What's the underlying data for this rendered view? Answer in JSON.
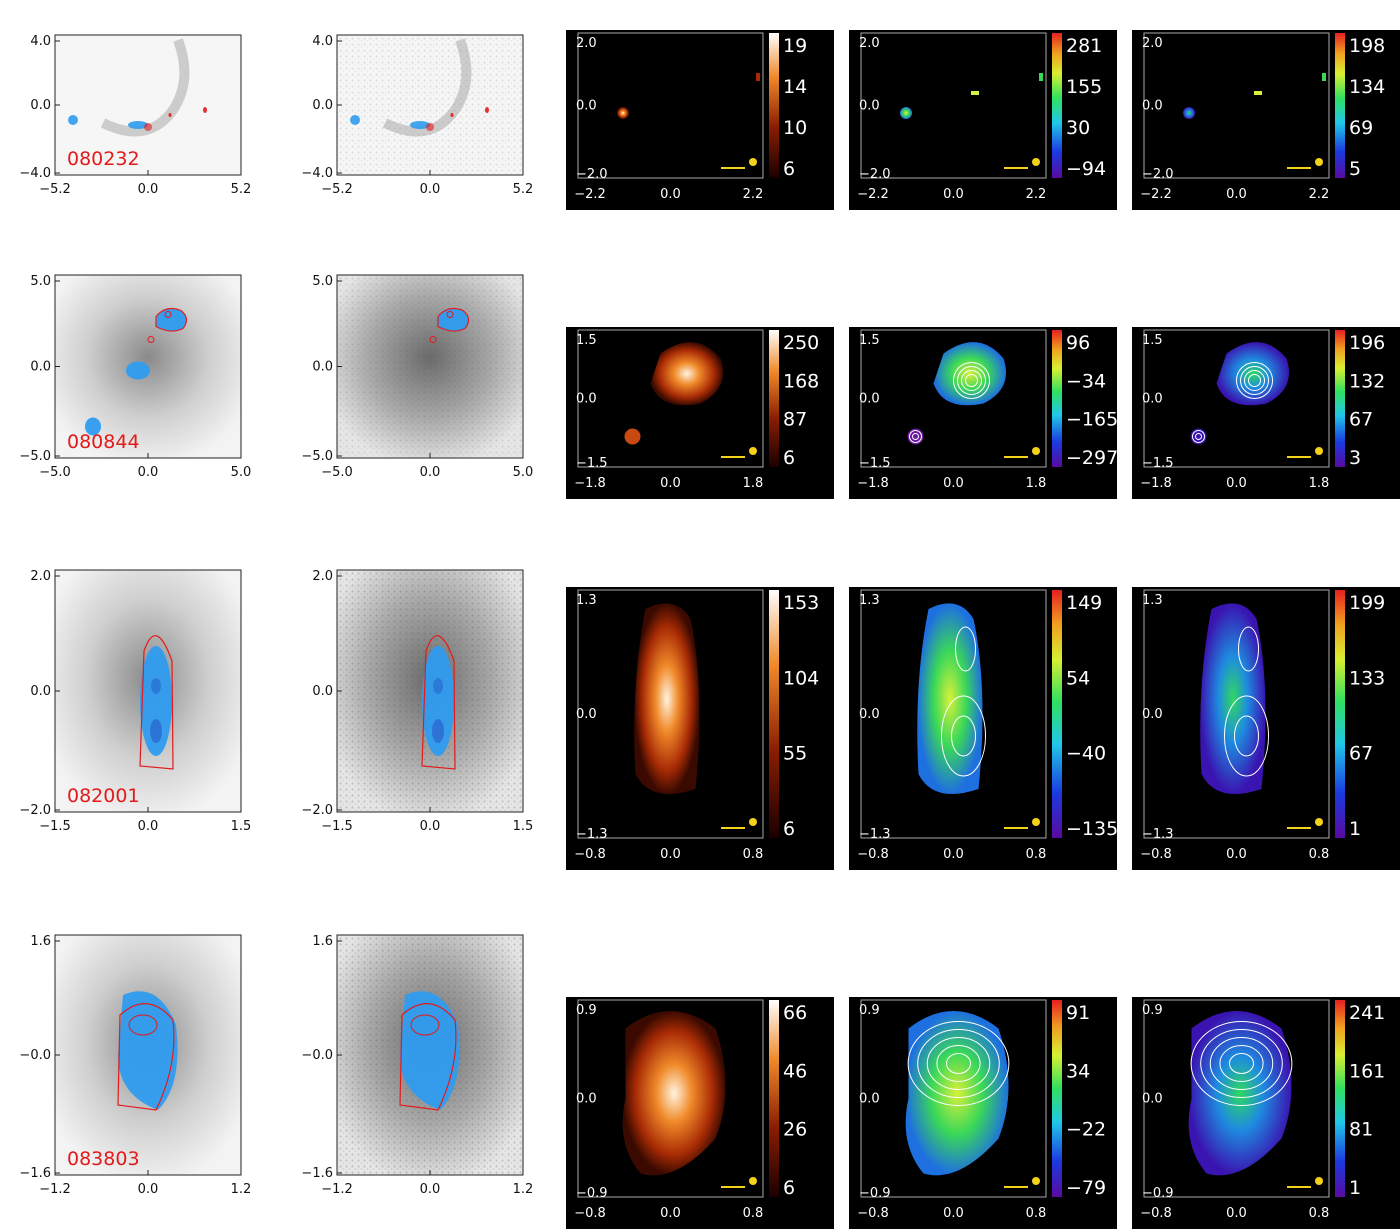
{
  "figure": {
    "rows": [
      {
        "id": "080232",
        "hst": {
          "x_ticks": [
            "−5.2",
            "0.0",
            "5.2"
          ],
          "y_ticks": [
            "4.0",
            "0.0",
            "−4.0"
          ]
        },
        "maps_axes": {
          "x_ticks": [
            "−2.2",
            "0.0",
            "2.2"
          ],
          "y_ticks": [
            "2.0",
            "0.0",
            "−2.0"
          ]
        },
        "flux_colorbar": [
          "19",
          "14",
          "10",
          "6"
        ],
        "velocity_colorbar": [
          "281",
          "155",
          "30",
          "−94"
        ],
        "dispersion_colorbar": [
          "198",
          "134",
          "69",
          "5"
        ]
      },
      {
        "id": "080844",
        "hst": {
          "x_ticks": [
            "−5.0",
            "0.0",
            "5.0"
          ],
          "y_ticks": [
            "5.0",
            "0.0",
            "−5.0"
          ]
        },
        "maps_axes": {
          "x_ticks": [
            "−1.8",
            "0.0",
            "1.8"
          ],
          "y_ticks": [
            "1.5",
            "0.0",
            "−1.5"
          ]
        },
        "flux_colorbar": [
          "250",
          "168",
          "87",
          "6"
        ],
        "velocity_colorbar": [
          "96",
          "−34",
          "−165",
          "−297"
        ],
        "dispersion_colorbar": [
          "196",
          "132",
          "67",
          "3"
        ]
      },
      {
        "id": "082001",
        "hst": {
          "x_ticks": [
            "−1.5",
            "0.0",
            "1.5"
          ],
          "y_ticks": [
            "2.0",
            "0.0",
            "−2.0"
          ]
        },
        "maps_axes": {
          "x_ticks": [
            "−0.8",
            "0.0",
            "0.8"
          ],
          "y_ticks": [
            "1.3",
            "0.0",
            "−1.3"
          ]
        },
        "flux_colorbar": [
          "153",
          "104",
          "55",
          "6"
        ],
        "velocity_colorbar": [
          "149",
          "54",
          "−40",
          "−135"
        ],
        "dispersion_colorbar": [
          "199",
          "133",
          "67",
          "1"
        ]
      },
      {
        "id": "083803",
        "hst": {
          "x_ticks": [
            "−1.2",
            "0.0",
            "1.2"
          ],
          "y_ticks": [
            "1.6",
            "−0.0",
            "−1.6"
          ]
        },
        "maps_axes": {
          "x_ticks": [
            "−0.8",
            "0.0",
            "0.8"
          ],
          "y_ticks": [
            "0.9",
            "0.0",
            "−0.9"
          ]
        },
        "flux_colorbar": [
          "66",
          "46",
          "26",
          "6"
        ],
        "velocity_colorbar": [
          "91",
          "34",
          "−22",
          "−79"
        ],
        "dispersion_colorbar": [
          "241",
          "161",
          "81",
          "1"
        ]
      }
    ],
    "colors": {
      "contour_red": "#e41a1a",
      "region_blue": "#2f9cf0",
      "scalebar_yellow": "#f3d21a",
      "map_background": "#000000"
    }
  }
}
